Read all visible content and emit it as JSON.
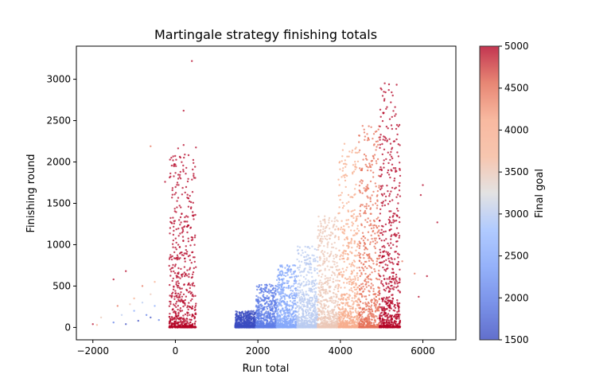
{
  "chart_data": {
    "type": "scatter",
    "title": "Martingale strategy finishing totals",
    "xlabel": "Run total",
    "ylabel": "Finishing round",
    "xlim": [
      -2400,
      6800
    ],
    "ylim": [
      -150,
      3400
    ],
    "xticks": [
      -2000,
      0,
      2000,
      4000,
      6000
    ],
    "xtick_labels": [
      "−2000",
      "0",
      "2000",
      "4000",
      "6000"
    ],
    "yticks": [
      0,
      500,
      1000,
      1500,
      2000,
      2500,
      3000
    ],
    "ytick_labels": [
      "0",
      "500",
      "1000",
      "1500",
      "2000",
      "2500",
      "3000"
    ],
    "grid": false,
    "colorbar": {
      "label": "Final goal",
      "range": [
        1500,
        5000
      ],
      "ticks": [
        1500,
        2000,
        2500,
        3000,
        3500,
        4000,
        4500,
        5000
      ],
      "tick_labels": [
        "1500",
        "2000",
        "2500",
        "3000",
        "3500",
        "4000",
        "4500",
        "5000"
      ],
      "colormap": "coolwarm",
      "alpha": 0.75
    },
    "series": [
      {
        "goal": 1500,
        "main_x": [
          1450,
          1950
        ],
        "main_y_max": 200,
        "outliers": [
          [
            -1200,
            40
          ],
          [
            -900,
            80
          ],
          [
            -600,
            120
          ]
        ]
      },
      {
        "goal": 2000,
        "main_x": [
          1950,
          2450
        ],
        "main_y_max": 520,
        "outliers": [
          [
            -1500,
            60
          ],
          [
            -700,
            150
          ],
          [
            -400,
            90
          ]
        ]
      },
      {
        "goal": 2500,
        "main_x": [
          2450,
          2950
        ],
        "main_y_max": 760,
        "outliers": [
          [
            -1000,
            200
          ],
          [
            -500,
            260
          ]
        ]
      },
      {
        "goal": 3000,
        "main_x": [
          2950,
          3450
        ],
        "main_y_max": 980,
        "outliers": [
          [
            -1300,
            150
          ],
          [
            -800,
            300
          ]
        ]
      },
      {
        "goal": 3500,
        "main_x": [
          3450,
          3950
        ],
        "main_y_max": 1350,
        "outliers": [
          [
            -1800,
            120
          ],
          [
            -1100,
            280
          ],
          [
            -600,
            400
          ]
        ]
      },
      {
        "goal": 4000,
        "main_x": [
          3950,
          4450
        ],
        "main_y_max": 2220,
        "outliers": [
          [
            -1900,
            30
          ],
          [
            -1000,
            350
          ],
          [
            -500,
            550
          ]
        ]
      },
      {
        "goal": 4500,
        "main_x": [
          4450,
          4950
        ],
        "main_y_max": 2440,
        "outliers": [
          [
            -1400,
            260
          ],
          [
            -800,
            500
          ],
          [
            -600,
            2190
          ],
          [
            5500,
            800
          ],
          [
            5800,
            650
          ]
        ]
      },
      {
        "goal": 5000,
        "main_x": [
          4950,
          5450
        ],
        "main_y_max": 3010,
        "outliers": [
          [
            -2000,
            40
          ],
          [
            -1500,
            580
          ],
          [
            -1200,
            680
          ],
          [
            -250,
            1760
          ],
          [
            200,
            2620
          ],
          [
            400,
            3220
          ],
          [
            6000,
            1720
          ],
          [
            6350,
            1270
          ],
          [
            5900,
            370
          ],
          [
            6100,
            620
          ],
          [
            5950,
            1600
          ],
          [
            5400,
            1500
          ]
        ]
      },
      {
        "goal": 5000,
        "main_x": [
          -150,
          500
        ],
        "main_y_max": 2250,
        "outliers": []
      }
    ]
  }
}
